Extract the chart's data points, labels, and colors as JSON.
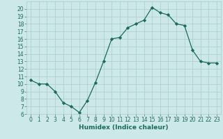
{
  "x": [
    0,
    1,
    2,
    3,
    4,
    5,
    6,
    7,
    8,
    9,
    10,
    11,
    12,
    13,
    14,
    15,
    16,
    17,
    18,
    19,
    20,
    21,
    22,
    23
  ],
  "y": [
    10.5,
    10.0,
    10.0,
    9.0,
    7.5,
    7.0,
    6.2,
    7.8,
    10.2,
    13.0,
    16.0,
    16.2,
    17.5,
    18.0,
    18.5,
    20.2,
    19.5,
    19.2,
    18.0,
    17.8,
    14.5,
    13.0,
    12.8,
    12.8
  ],
  "xlabel": "Humidex (Indice chaleur)",
  "xlim": [
    -0.5,
    23.5
  ],
  "ylim": [
    6,
    21
  ],
  "yticks": [
    6,
    7,
    8,
    9,
    10,
    11,
    12,
    13,
    14,
    15,
    16,
    17,
    18,
    19,
    20
  ],
  "xticks": [
    0,
    1,
    2,
    3,
    4,
    5,
    6,
    7,
    8,
    9,
    10,
    11,
    12,
    13,
    14,
    15,
    16,
    17,
    18,
    19,
    20,
    21,
    22,
    23
  ],
  "line_color": "#1a6b5a",
  "marker_color": "#1a6b5a",
  "bg_color": "#cce8e8",
  "grid_color": "#aacccc",
  "label_fontsize": 6.5,
  "tick_fontsize": 5.5
}
